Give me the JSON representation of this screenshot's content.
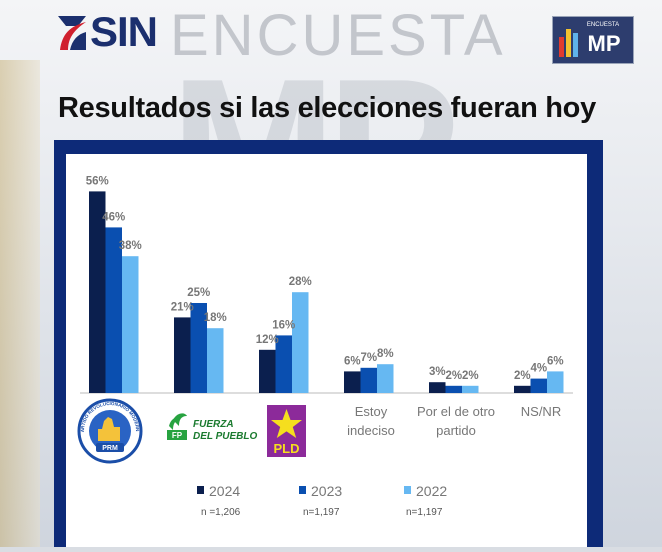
{
  "header": {
    "brand": "SIN",
    "section": "ENCUESTA",
    "partner_logo": "MP",
    "partner_caption": "ENCUESTA"
  },
  "title": "Resultados si las elecciones fueran hoy",
  "colors": {
    "s2024": "#0b1f4e",
    "s2023": "#0a4fb0",
    "s2022": "#66b8f2",
    "panel": "#0d2a78",
    "label": "#777777"
  },
  "chart_data": {
    "type": "bar",
    "title": "Resultados si las elecciones fueran hoy",
    "categories": [
      "PRM",
      "FP",
      "PLD",
      "Estoy indeciso",
      "Por el de otro partido",
      "NS/NR"
    ],
    "category_display": [
      {
        "kind": "logo",
        "logo": "prm-logo",
        "text": "PRM",
        "ring": "PARTIDO REVOLUCIONARIO MODERNO"
      },
      {
        "kind": "logo",
        "logo": "fp-logo",
        "text": "FP",
        "line1": "FUERZA",
        "line2": "DEL PUEBLO"
      },
      {
        "kind": "logo",
        "logo": "pld-logo",
        "text": "PLD"
      },
      {
        "kind": "text",
        "lines": [
          "Estoy",
          "indeciso"
        ]
      },
      {
        "kind": "text",
        "lines": [
          "Por el de otro",
          "partido"
        ]
      },
      {
        "kind": "text",
        "lines": [
          "NS/NR"
        ]
      }
    ],
    "series": [
      {
        "name": "2024",
        "n": "n =1,206",
        "values": [
          56,
          21,
          12,
          6,
          3,
          2
        ]
      },
      {
        "name": "2023",
        "n": "n=1,197",
        "values": [
          46,
          25,
          16,
          7,
          2,
          4
        ]
      },
      {
        "name": "2022",
        "n": "n=1,197",
        "values": [
          38,
          18,
          28,
          8,
          2,
          6
        ]
      }
    ],
    "value_suffix": "%",
    "ylim": [
      0,
      60
    ],
    "grid": false,
    "legend_position": "bottom"
  }
}
